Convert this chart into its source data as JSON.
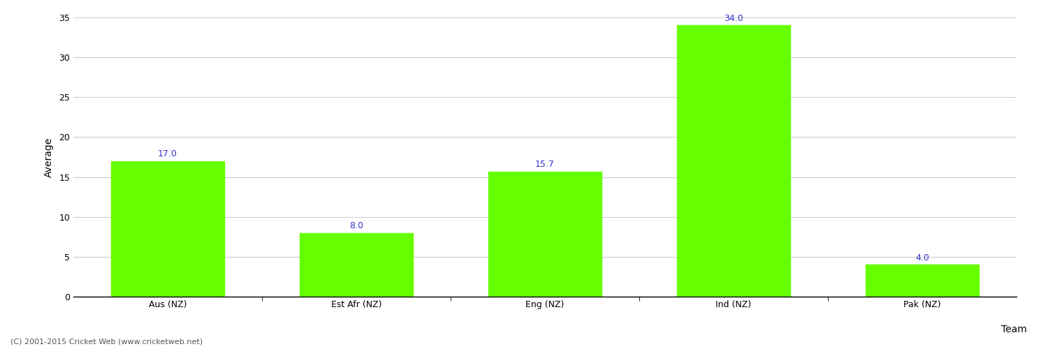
{
  "categories": [
    "Aus (NZ)",
    "Est Afr (NZ)",
    "Eng (NZ)",
    "Ind (NZ)",
    "Pak (NZ)"
  ],
  "values": [
    17.0,
    8.0,
    15.7,
    34.0,
    4.0
  ],
  "bar_color": "#66ff00",
  "bar_edge_color": "#66ff00",
  "value_label_color": "#3333cc",
  "xlabel": "Team",
  "ylabel": "Average",
  "ylim": [
    0,
    35
  ],
  "yticks": [
    0,
    5,
    10,
    15,
    20,
    25,
    30,
    35
  ],
  "grid_color": "#cccccc",
  "background_color": "#ffffff",
  "footnote": "(C) 2001-2015 Cricket Web (www.cricketweb.net)",
  "title_fontsize": 13,
  "label_fontsize": 10,
  "tick_fontsize": 9,
  "value_fontsize": 9,
  "footnote_fontsize": 8,
  "bar_width": 0.6
}
